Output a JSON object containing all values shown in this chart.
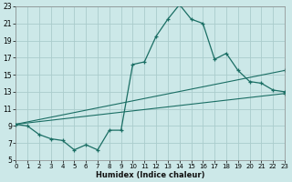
{
  "xlabel": "Humidex (Indice chaleur)",
  "xlim": [
    0,
    23
  ],
  "ylim": [
    5,
    23
  ],
  "xticks": [
    0,
    1,
    2,
    3,
    4,
    5,
    6,
    7,
    8,
    9,
    10,
    11,
    12,
    13,
    14,
    15,
    16,
    17,
    18,
    19,
    20,
    21,
    22,
    23
  ],
  "yticks": [
    5,
    7,
    9,
    11,
    13,
    15,
    17,
    19,
    21,
    23
  ],
  "bg_color": "#cce8e8",
  "grid_color": "#aacccc",
  "line_color": "#1a6e64",
  "curve1_x": [
    0,
    1,
    2,
    3,
    4,
    5,
    6,
    7,
    8,
    9,
    10,
    11,
    12,
    13,
    14,
    15,
    16,
    17,
    18,
    19,
    20,
    21,
    22,
    23
  ],
  "curve1_y": [
    9.2,
    9.0,
    8.0,
    7.5,
    7.3,
    6.2,
    6.8,
    6.2,
    8.5,
    8.5,
    16.2,
    16.5,
    19.5,
    21.5,
    23.2,
    21.5,
    21.0,
    16.8,
    17.5,
    15.5,
    14.2,
    14.0,
    13.2,
    13.0
  ],
  "curve2_x": [
    0,
    23
  ],
  "curve2_y": [
    9.2,
    15.5
  ],
  "curve3_x": [
    0,
    23
  ],
  "curve3_y": [
    9.2,
    12.8
  ]
}
